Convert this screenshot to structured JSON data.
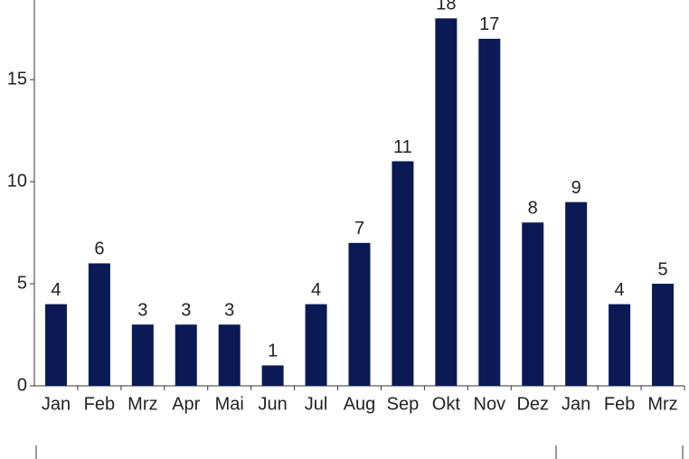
{
  "chart_data": {
    "type": "bar",
    "categories": [
      "Jan",
      "Feb",
      "Mrz",
      "Apr",
      "Mai",
      "Jun",
      "Jul",
      "Aug",
      "Sep",
      "Okt",
      "Nov",
      "Dez",
      "Jan",
      "Feb",
      "Mrz"
    ],
    "values": [
      4,
      6,
      3,
      3,
      3,
      1,
      4,
      7,
      11,
      18,
      17,
      8,
      9,
      4,
      5
    ],
    "color": "#0b1a55",
    "ylim": [
      0,
      18.9
    ],
    "yticks": [
      0,
      5,
      10,
      15
    ],
    "grid": false
  }
}
